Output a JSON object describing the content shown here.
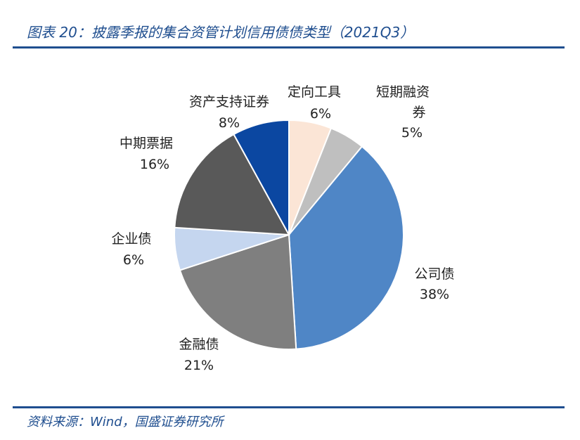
{
  "header": {
    "title": "图表 20：披露季报的集合资管计划信用债债类型（2021Q3）"
  },
  "footer": {
    "source": "资料来源：Wind，国盛证券研究所"
  },
  "chart_data": {
    "type": "pie",
    "title": "",
    "slices": [
      {
        "name": "定向工具",
        "value": 6,
        "label": "6%",
        "color": "#fbe5d6"
      },
      {
        "name": "短期融资券",
        "value": 5,
        "label": "5%",
        "color": "#bfbfbf"
      },
      {
        "name": "公司债",
        "value": 38,
        "label": "38%",
        "color": "#4f86c6"
      },
      {
        "name": "金融债",
        "value": 21,
        "label": "21%",
        "color": "#7f7f7f"
      },
      {
        "name": "企业债",
        "value": 6,
        "label": "6%",
        "color": "#c5d6ef"
      },
      {
        "name": "中期票据",
        "value": 16,
        "label": "16%",
        "color": "#595959"
      },
      {
        "name": "资产支持证券",
        "value": 8,
        "label": "8%",
        "color": "#0b47a1"
      }
    ]
  }
}
